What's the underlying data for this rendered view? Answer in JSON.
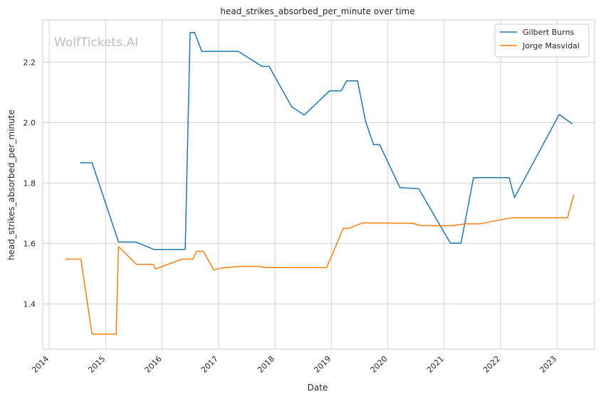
{
  "watermark": "WolfTickets.AI",
  "chart_data": {
    "type": "line",
    "title": "head_strikes_absorbed_per_minute over time",
    "xlabel": "Date",
    "ylabel": "head_strikes_absorbed_per_minute",
    "x_ticks": [
      "2014",
      "2015",
      "2016",
      "2017",
      "2018",
      "2019",
      "2020",
      "2021",
      "2022",
      "2023"
    ],
    "y_ticks": [
      "1.4",
      "1.6",
      "1.8",
      "2.0",
      "2.2"
    ],
    "xlim": [
      "2013-11-20",
      "2023-09-01"
    ],
    "ylim": [
      1.25,
      2.34
    ],
    "grid": true,
    "legend_position": "top-right",
    "series": [
      {
        "name": "Gilbert Burns",
        "color": "#1f77b4",
        "points": [
          [
            "2014-07-20",
            1.867
          ],
          [
            "2014-10-05",
            1.867
          ],
          [
            "2015-03-25",
            1.605
          ],
          [
            "2015-07-15",
            1.605
          ],
          [
            "2015-11-10",
            1.58
          ],
          [
            "2016-05-30",
            1.58
          ],
          [
            "2016-07-01",
            2.298
          ],
          [
            "2016-07-30",
            2.298
          ],
          [
            "2016-09-15",
            2.236
          ],
          [
            "2017-05-10",
            2.236
          ],
          [
            "2017-10-10",
            2.186
          ],
          [
            "2017-11-25",
            2.186
          ],
          [
            "2018-04-20",
            2.052
          ],
          [
            "2018-07-10",
            2.025
          ],
          [
            "2018-12-20",
            2.105
          ],
          [
            "2019-03-05",
            2.105
          ],
          [
            "2019-04-10",
            2.138
          ],
          [
            "2019-06-20",
            2.138
          ],
          [
            "2019-08-10",
            2.005
          ],
          [
            "2019-10-01",
            1.927
          ],
          [
            "2019-11-10",
            1.927
          ],
          [
            "2020-03-20",
            1.785
          ],
          [
            "2020-07-20",
            1.781
          ],
          [
            "2021-02-10",
            1.601
          ],
          [
            "2021-04-20",
            1.601
          ],
          [
            "2021-07-10",
            1.818
          ],
          [
            "2022-02-25",
            1.818
          ],
          [
            "2022-04-01",
            1.752
          ],
          [
            "2023-01-15",
            2.027
          ],
          [
            "2023-04-10",
            1.996
          ]
        ]
      },
      {
        "name": "Jorge Masvidal",
        "color": "#ff7f0e",
        "points": [
          [
            "2014-04-15",
            1.548
          ],
          [
            "2014-07-25",
            1.548
          ],
          [
            "2014-10-05",
            1.3
          ],
          [
            "2015-03-10",
            1.3
          ],
          [
            "2015-03-25",
            1.59
          ],
          [
            "2015-07-20",
            1.531
          ],
          [
            "2015-11-05",
            1.531
          ],
          [
            "2015-11-20",
            1.516
          ],
          [
            "2016-05-10",
            1.548
          ],
          [
            "2016-07-20",
            1.548
          ],
          [
            "2016-08-10",
            1.574
          ],
          [
            "2016-09-25",
            1.574
          ],
          [
            "2016-12-01",
            1.513
          ],
          [
            "2017-01-25",
            1.519
          ],
          [
            "2017-05-10",
            1.524
          ],
          [
            "2017-09-20",
            1.524
          ],
          [
            "2017-11-05",
            1.52
          ],
          [
            "2018-12-01",
            1.52
          ],
          [
            "2019-03-20",
            1.65
          ],
          [
            "2019-04-25",
            1.65
          ],
          [
            "2019-07-20",
            1.668
          ],
          [
            "2020-06-10",
            1.667
          ],
          [
            "2020-08-05",
            1.659
          ],
          [
            "2021-02-20",
            1.659
          ],
          [
            "2021-05-20",
            1.665
          ],
          [
            "2021-08-20",
            1.665
          ],
          [
            "2022-03-10",
            1.685
          ],
          [
            "2023-03-10",
            1.685
          ],
          [
            "2023-04-20",
            1.761
          ]
        ]
      }
    ]
  }
}
